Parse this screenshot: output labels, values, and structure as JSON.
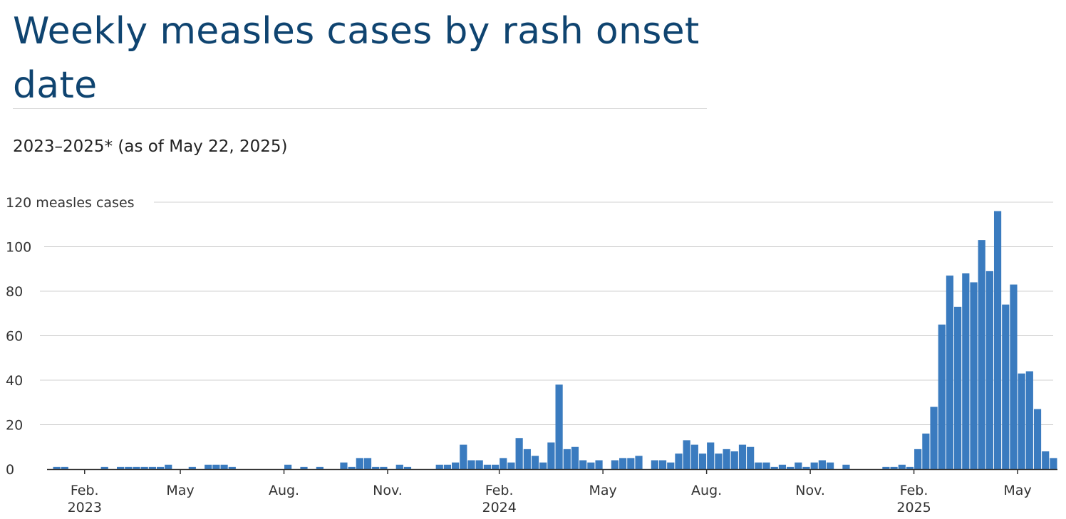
{
  "header": {
    "title": "Weekly measles cases by rash onset date",
    "subtitle": "2023–2025* (as of May 22, 2025)"
  },
  "colors": {
    "bar": "#3a7bbf",
    "title": "#0f4470",
    "grid": "#d0d0d0"
  },
  "chart_data": {
    "type": "bar",
    "title": "Weekly measles cases by rash onset date",
    "subtitle": "2023–2025* (as of May 22, 2025)",
    "ylabel": "measles cases",
    "ylim": [
      0,
      120
    ],
    "yticks": [
      0,
      20,
      40,
      60,
      80,
      100,
      120
    ],
    "top_tick_suffix": " measles cases",
    "x_ticks": [
      {
        "label": "Feb.",
        "year": "2023",
        "week_index": 4
      },
      {
        "label": "May",
        "year": "",
        "week_index": 16
      },
      {
        "label": "Aug.",
        "year": "",
        "week_index": 29
      },
      {
        "label": "Nov.",
        "year": "",
        "week_index": 42
      },
      {
        "label": "Feb.",
        "year": "2024",
        "week_index": 56
      },
      {
        "label": "May",
        "year": "",
        "week_index": 69
      },
      {
        "label": "Aug.",
        "year": "",
        "week_index": 82
      },
      {
        "label": "Nov.",
        "year": "",
        "week_index": 95
      },
      {
        "label": "Feb.",
        "year": "2025",
        "week_index": 108
      },
      {
        "label": "May",
        "year": "",
        "week_index": 121
      }
    ],
    "series": [
      {
        "name": "Weekly measles cases",
        "values": [
          1,
          1,
          0,
          0,
          0,
          0,
          1,
          0,
          1,
          1,
          1,
          1,
          1,
          1,
          2,
          0,
          0,
          1,
          0,
          2,
          2,
          2,
          1,
          0,
          0,
          0,
          0,
          0,
          0,
          2,
          0,
          1,
          0,
          1,
          0,
          0,
          3,
          1,
          5,
          5,
          1,
          1,
          0,
          2,
          1,
          0,
          0,
          0,
          2,
          2,
          3,
          11,
          4,
          4,
          2,
          2,
          5,
          3,
          14,
          9,
          6,
          3,
          12,
          38,
          9,
          10,
          4,
          3,
          4,
          0,
          4,
          5,
          5,
          6,
          0,
          4,
          4,
          3,
          7,
          13,
          11,
          7,
          12,
          7,
          9,
          8,
          11,
          10,
          3,
          3,
          1,
          2,
          1,
          3,
          1,
          3,
          4,
          3,
          0,
          2,
          0,
          0,
          0,
          0,
          1,
          1,
          2,
          1,
          9,
          16,
          28,
          65,
          87,
          73,
          88,
          84,
          103,
          89,
          116,
          74,
          83,
          43,
          44,
          27,
          8,
          5
        ]
      }
    ]
  }
}
